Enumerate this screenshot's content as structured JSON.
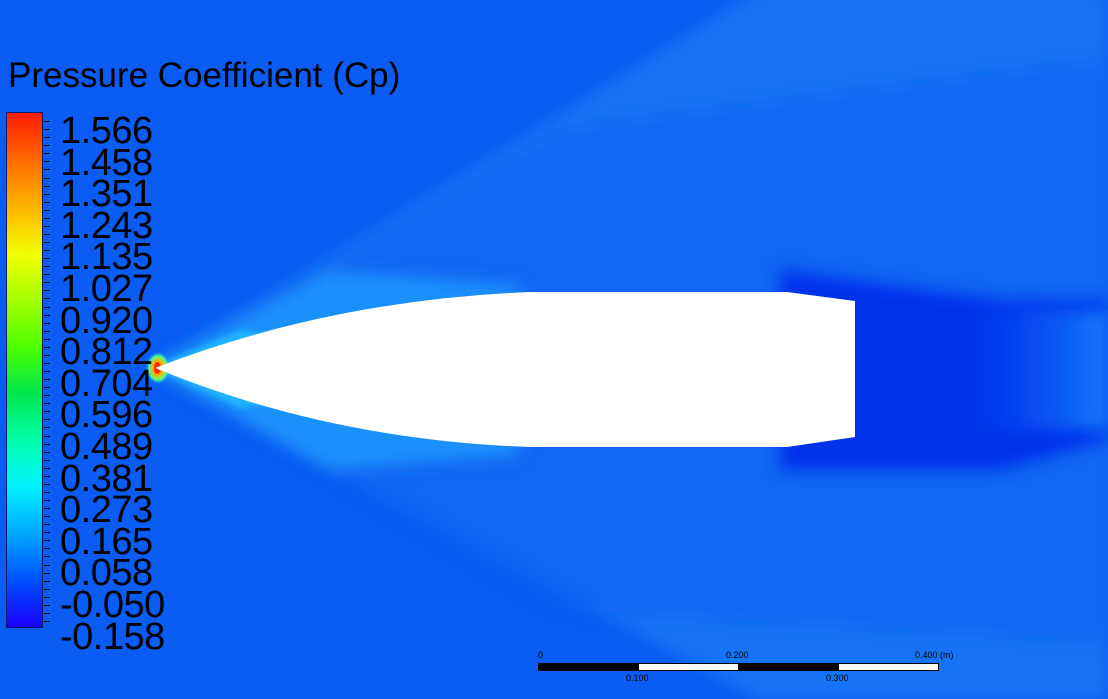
{
  "legend": {
    "title": "Pressure Coefficient (Cp)",
    "values": [
      "1.566",
      "1.458",
      "1.351",
      "1.243",
      "1.135",
      "1.027",
      "0.920",
      "0.812",
      "0.704",
      "0.596",
      "0.489",
      "0.381",
      "0.273",
      "0.165",
      "0.058",
      "-0.050",
      "-0.158"
    ],
    "gradient_colors": [
      "#ff1a00",
      "#ff6a00",
      "#ffb300",
      "#f2ff00",
      "#a6ff00",
      "#4dff00",
      "#00e64d",
      "#00ffaa",
      "#00f2ff",
      "#00a6ff",
      "#0050ff",
      "#1a00ff"
    ]
  },
  "scale_bar": {
    "top_labels": [
      "0",
      "0.200",
      "0.400  (m)"
    ],
    "bottom_labels": [
      "0.100",
      "0.300"
    ]
  },
  "colors": {
    "background": "#0a5cf2",
    "body": "#ffffff",
    "high_pressure": "#ff3300",
    "low_pressure_wake": "#0433ea"
  }
}
